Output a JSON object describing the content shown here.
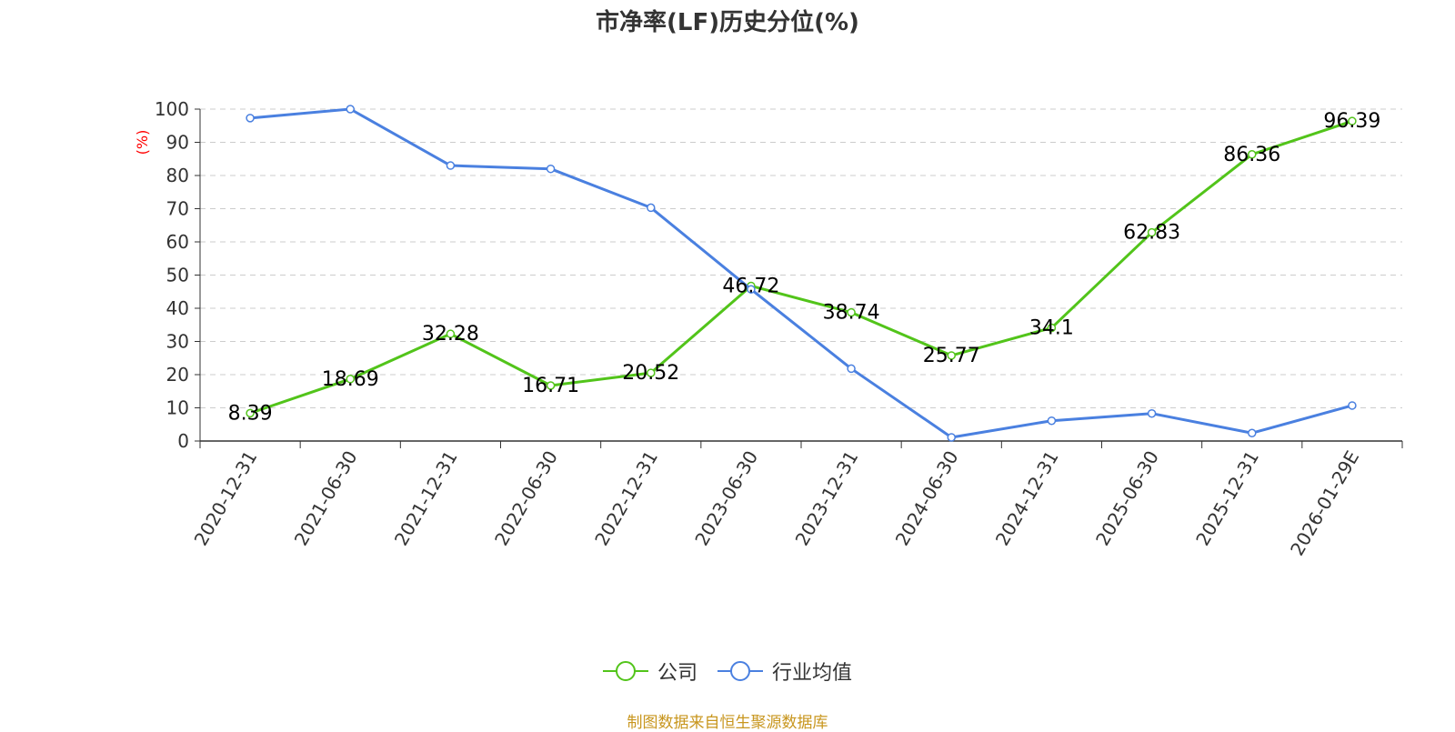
{
  "title": "市净率(LF)历史分位(%)",
  "source": "制图数据来自恒生聚源数据库",
  "colors": {
    "company": "#52c41a",
    "industry": "#4a80e0",
    "ylabel": "#ff0000",
    "source": "#c8961e",
    "grid": "#cccccc",
    "axis": "#333333"
  },
  "chart_data": {
    "type": "line",
    "title": "市净率(LF)历史分位(%)",
    "xlabel": "",
    "ylabel": "(%)",
    "ylim": [
      0,
      100
    ],
    "yticks": [
      0,
      10,
      20,
      30,
      40,
      50,
      60,
      70,
      80,
      90,
      100
    ],
    "grid": true,
    "legend_position": "bottom-center",
    "categories": [
      "2020-12-31",
      "2021-06-30",
      "2021-12-31",
      "2022-06-30",
      "2022-12-31",
      "2023-06-30",
      "2023-12-31",
      "2024-06-30",
      "2024-12-31",
      "2025-06-30",
      "2025-12-31",
      "2026-01-29E"
    ],
    "series": [
      {
        "name": "公司",
        "color": "#52c41a",
        "show_labels": true,
        "values": [
          8.39,
          18.69,
          32.28,
          16.71,
          20.52,
          46.72,
          38.74,
          25.77,
          34.1,
          62.83,
          86.36,
          96.39
        ]
      },
      {
        "name": "行业均值",
        "color": "#4a80e0",
        "show_labels": false,
        "values": [
          97.3,
          100,
          83,
          82,
          70.3,
          45.7,
          21.8,
          1.1,
          6.1,
          8.3,
          2.4,
          10.7
        ]
      }
    ]
  }
}
